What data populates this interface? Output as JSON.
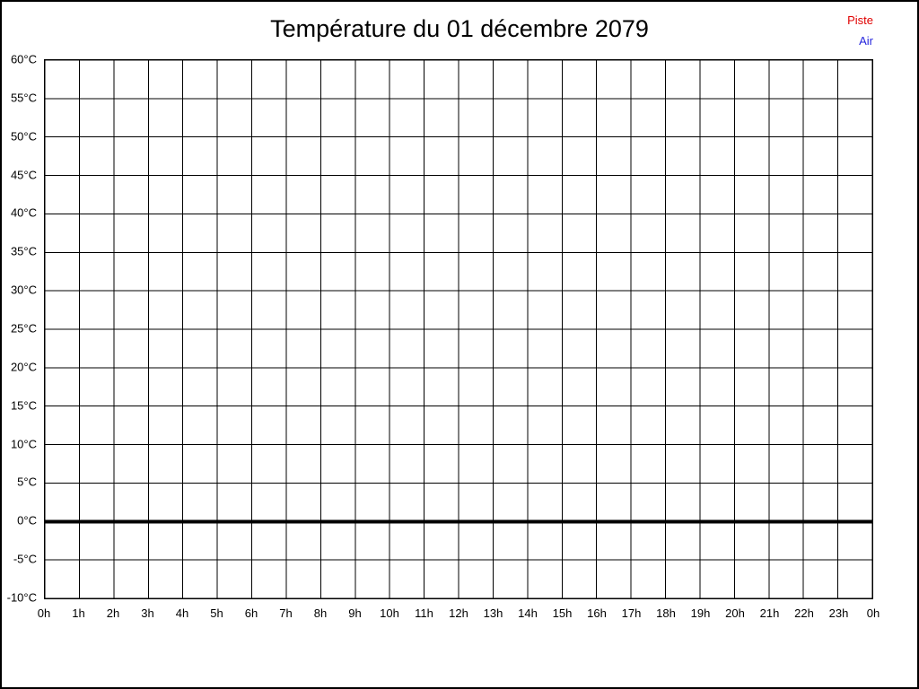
{
  "header": {
    "title": "Température du 01 décembre 2079"
  },
  "legend": {
    "position": "top-right",
    "items": [
      {
        "label": "Piste",
        "color": "#e00000"
      },
      {
        "label": "Air",
        "color": "#2525dd"
      }
    ]
  },
  "chart_data": {
    "type": "line",
    "title": "Température du 01 décembre 2079",
    "xlabel": "",
    "ylabel": "",
    "x_tick_labels": [
      "0h",
      "1h",
      "2h",
      "3h",
      "4h",
      "5h",
      "6h",
      "7h",
      "8h",
      "9h",
      "10h",
      "11h",
      "12h",
      "13h",
      "14h",
      "15h",
      "16h",
      "17h",
      "18h",
      "19h",
      "20h",
      "21h",
      "22h",
      "23h",
      "0h"
    ],
    "xlim_hours": [
      0,
      24
    ],
    "y_ticks": [
      60,
      55,
      50,
      45,
      40,
      35,
      30,
      25,
      20,
      15,
      10,
      5,
      0,
      -5,
      -10
    ],
    "y_unit": "°C",
    "ylim": [
      -10,
      60
    ],
    "grid": true,
    "grid_color": "#000000",
    "zero_line": {
      "value": 0,
      "stroke_width": 4,
      "color": "#000000"
    },
    "legend_position": "top-right",
    "series": [
      {
        "name": "Piste",
        "color": "#e00000",
        "values": []
      },
      {
        "name": "Air",
        "color": "#2525dd",
        "values": []
      }
    ]
  },
  "colors": {
    "background": "#ffffff",
    "frame_border": "#000000",
    "title": "#000000"
  }
}
